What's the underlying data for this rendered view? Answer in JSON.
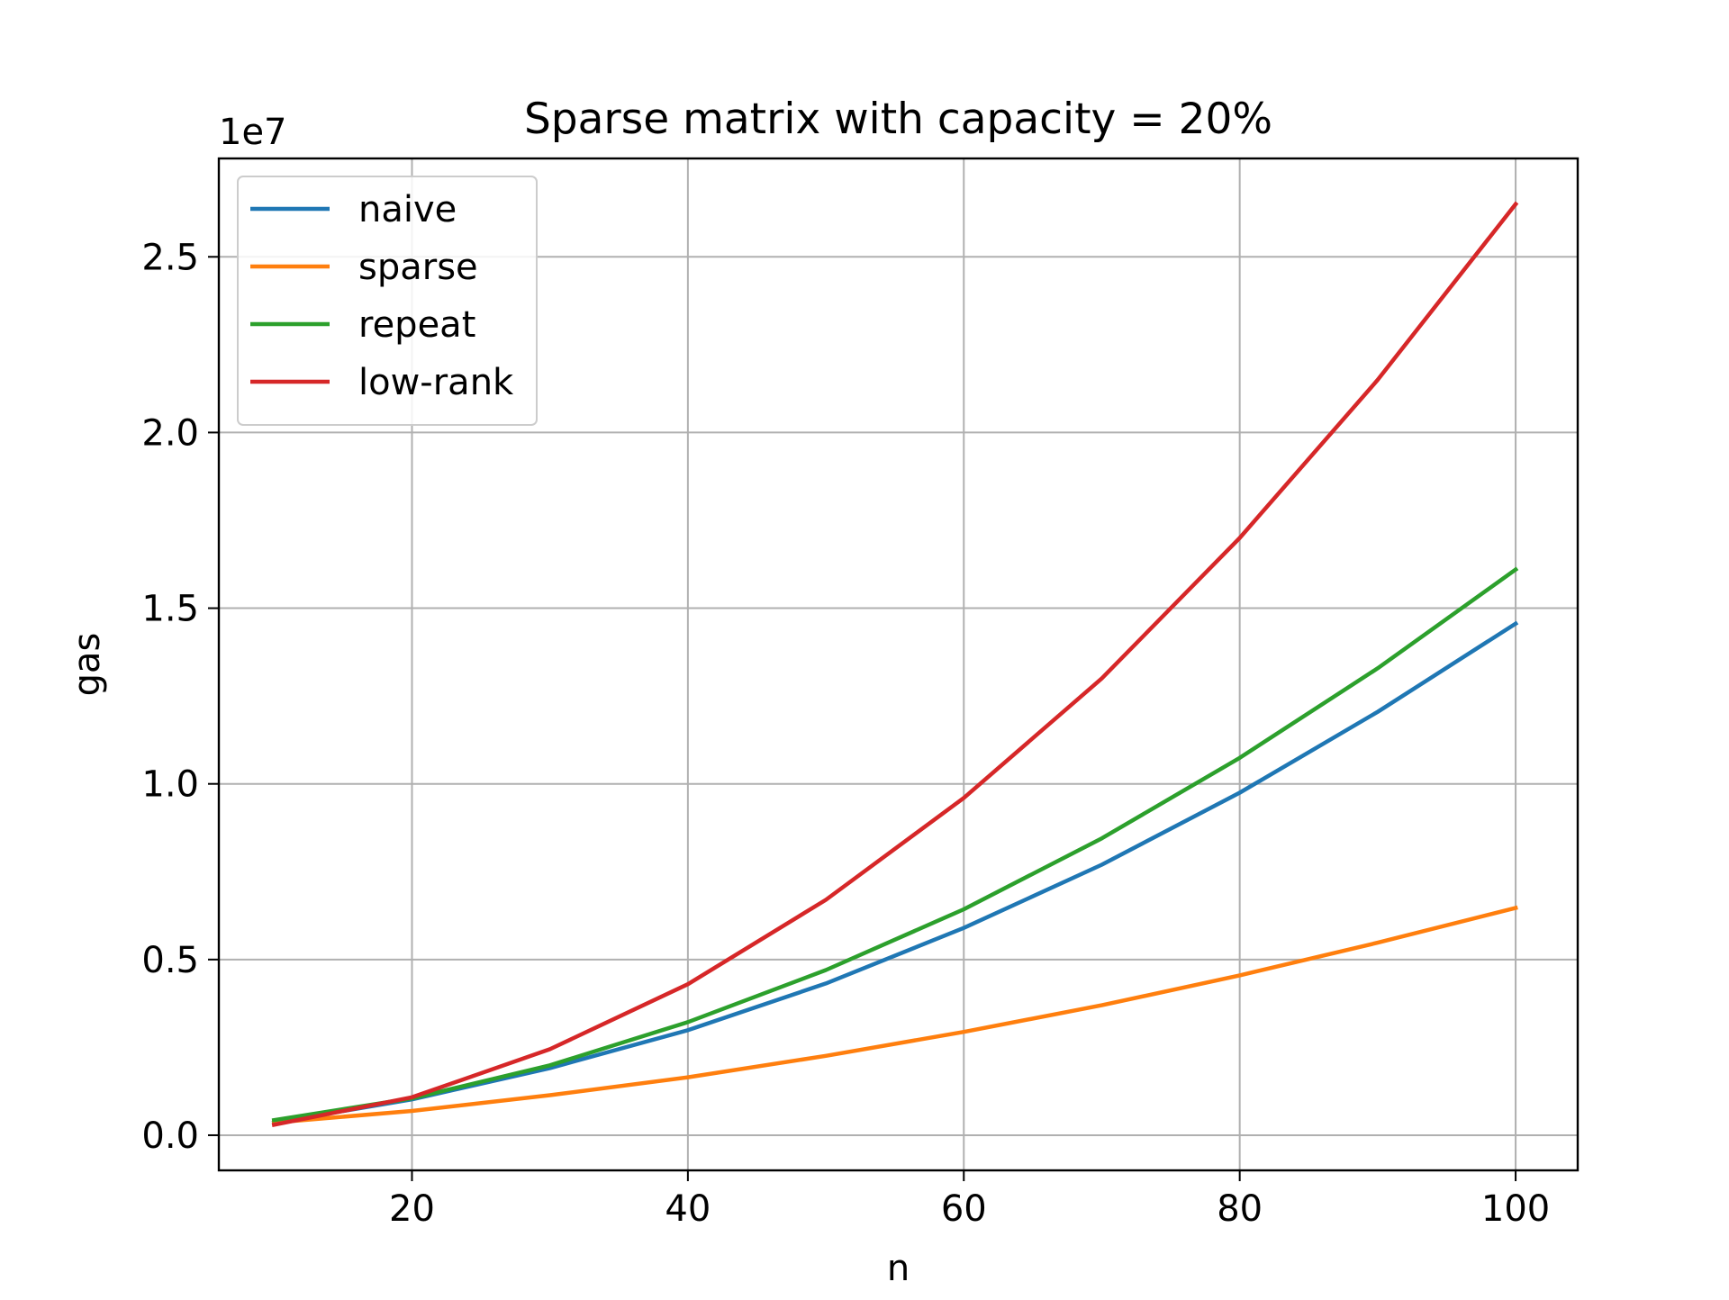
{
  "chart_data": {
    "type": "line",
    "title": "Sparse matrix with capacity = 20%",
    "xlabel": "n",
    "ylabel": "gas",
    "y_offset_label": "1e7",
    "y_scale": 10000000,
    "x": [
      10,
      20,
      30,
      40,
      50,
      60,
      70,
      80,
      90,
      100
    ],
    "xlim": [
      6,
      104.5
    ],
    "ylim": [
      -0.1,
      2.78
    ],
    "xticks": [
      20,
      40,
      60,
      80,
      100
    ],
    "xtick_labels": [
      "20",
      "40",
      "60",
      "80",
      "100"
    ],
    "yticks": [
      0.0,
      0.5,
      1.0,
      1.5,
      2.0,
      2.5
    ],
    "ytick_labels": [
      "0.0",
      "0.5",
      "1.0",
      "1.5",
      "2.0",
      "2.5"
    ],
    "grid": true,
    "legend_position": "upper left",
    "series": [
      {
        "name": "naive",
        "color": "#1f77b4",
        "values": [
          0.036,
          0.102,
          0.191,
          0.299,
          0.432,
          0.59,
          0.77,
          0.975,
          1.205,
          1.456
        ]
      },
      {
        "name": "sparse",
        "color": "#ff7f0e",
        "values": [
          0.036,
          0.069,
          0.114,
          0.165,
          0.226,
          0.294,
          0.37,
          0.455,
          0.548,
          0.647
        ]
      },
      {
        "name": "repeat",
        "color": "#2ca02c",
        "values": [
          0.043,
          0.105,
          0.199,
          0.322,
          0.47,
          0.643,
          0.845,
          1.074,
          1.329,
          1.61
        ]
      },
      {
        "name": "low-rank",
        "color": "#d62728",
        "values": [
          0.03,
          0.108,
          0.245,
          0.43,
          0.67,
          0.96,
          1.3,
          1.7,
          2.15,
          2.65
        ]
      }
    ]
  }
}
